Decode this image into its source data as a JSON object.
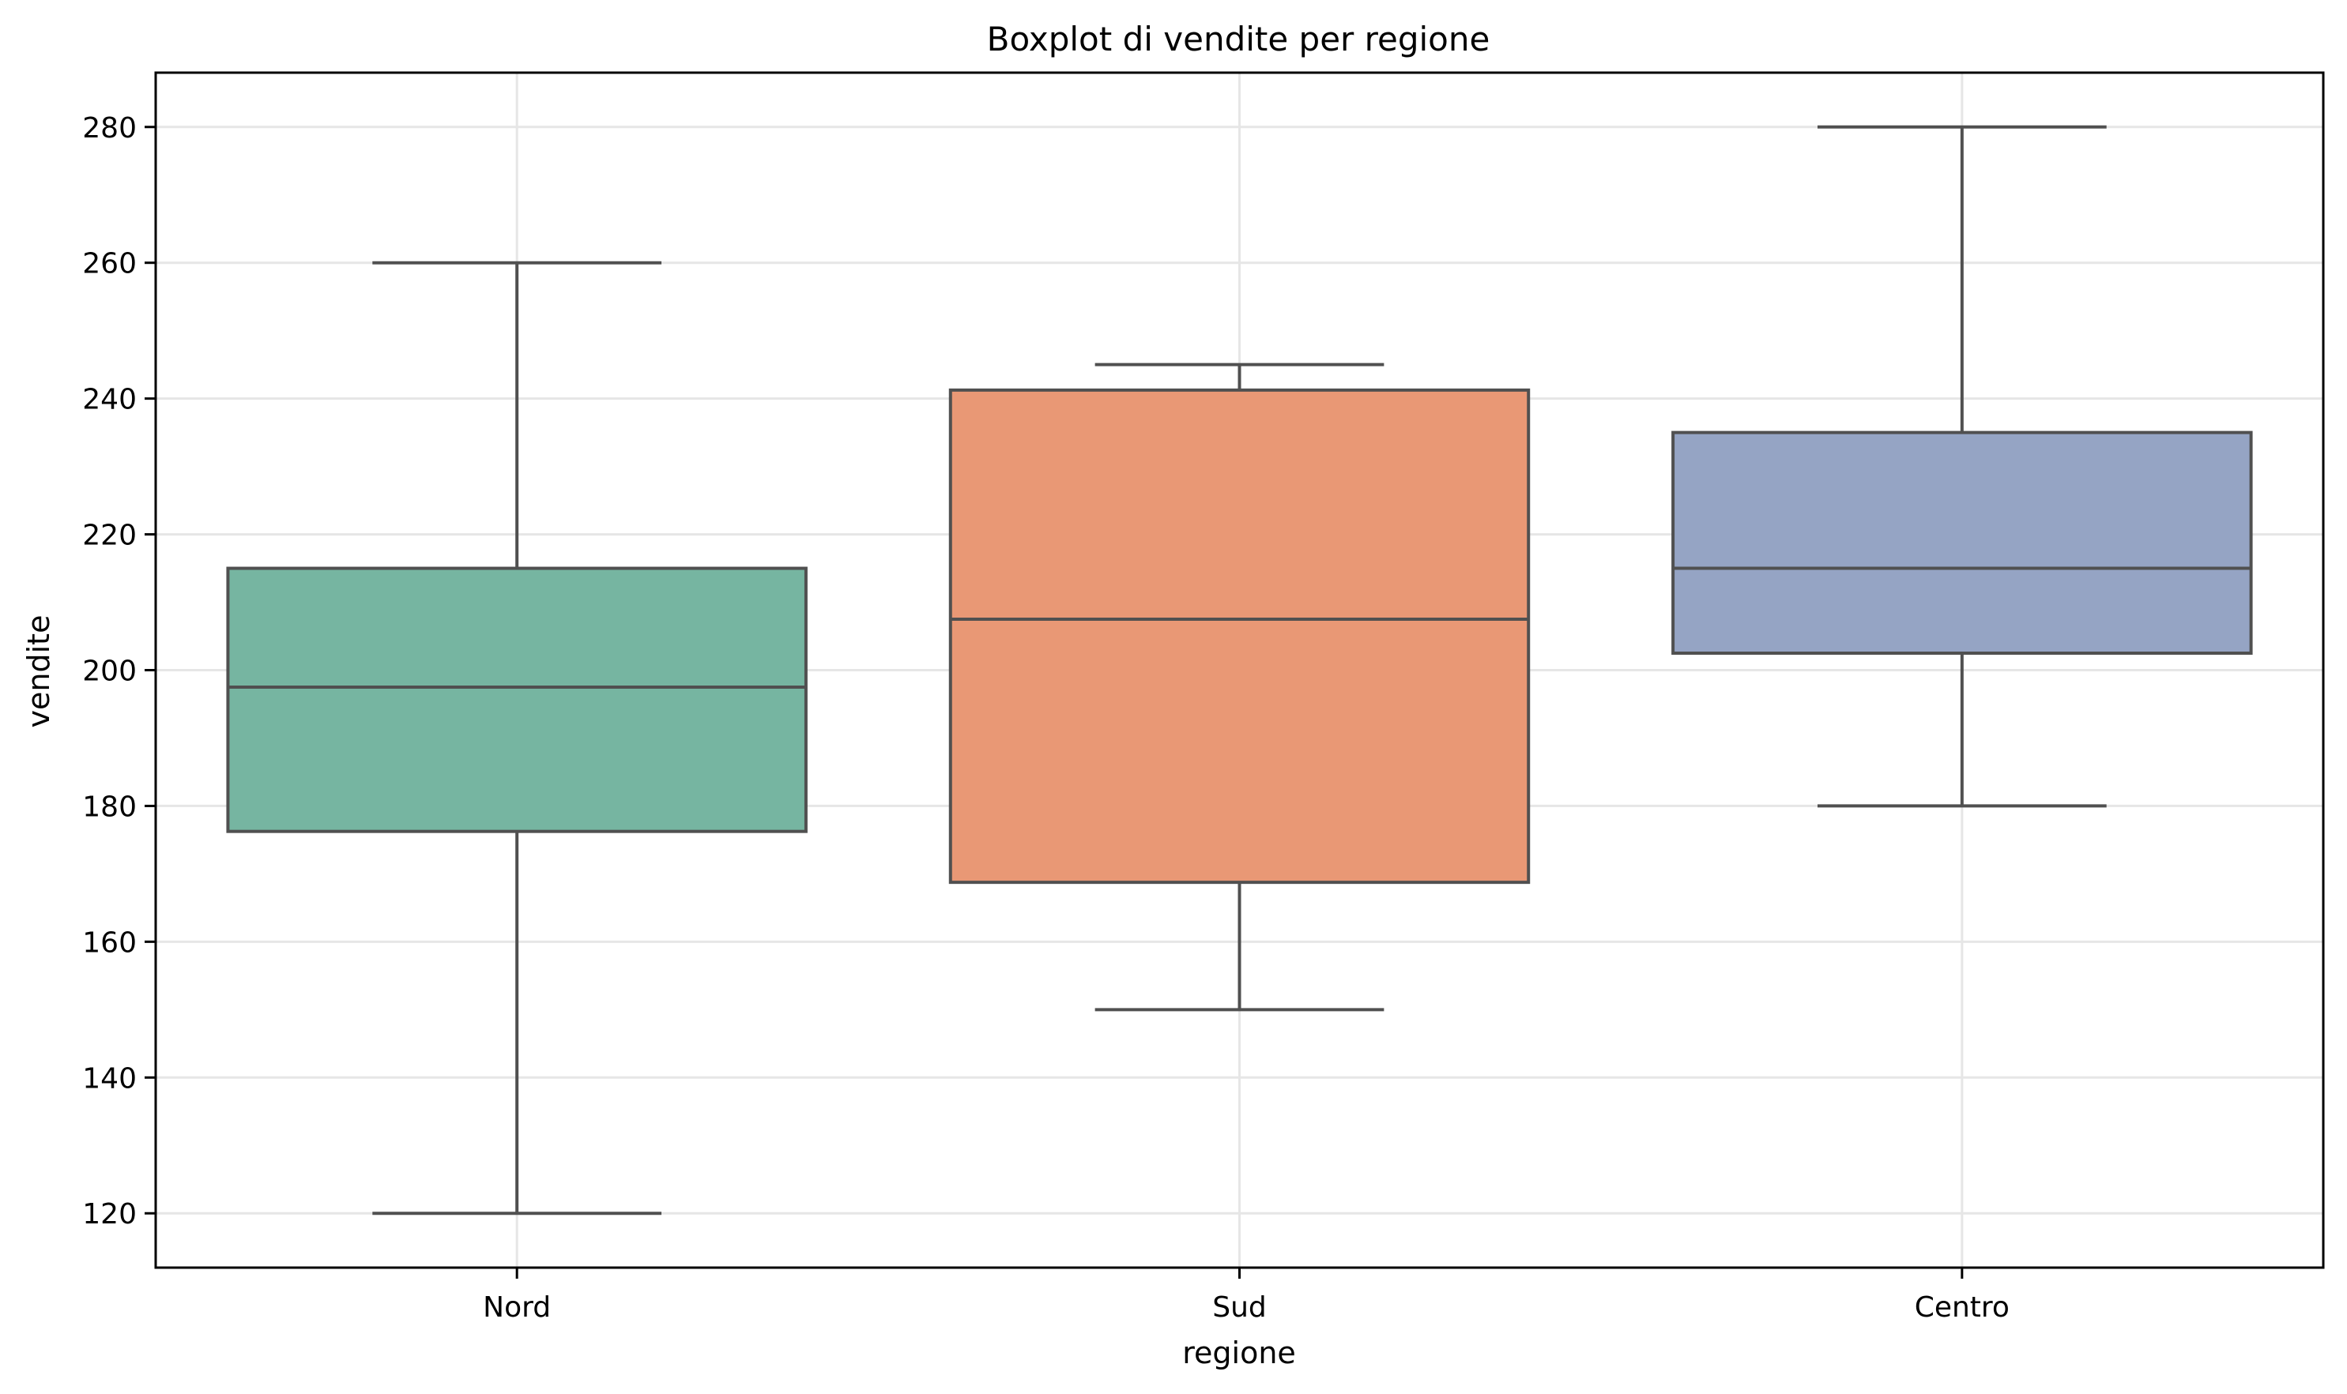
{
  "chart_data": {
    "type": "boxplot",
    "title": "Boxplot di vendite per regione",
    "xlabel": "regione",
    "ylabel": "vendite",
    "ylim": [
      112,
      288
    ],
    "yticks": [
      120,
      140,
      160,
      180,
      200,
      220,
      240,
      260,
      280
    ],
    "grid": true,
    "categories": [
      "Nord",
      "Sud",
      "Centro"
    ],
    "boxes": [
      {
        "category": "Nord",
        "min": 120,
        "q1": 176.25,
        "median": 197.5,
        "q3": 215,
        "max": 260,
        "color": "#76b5a1"
      },
      {
        "category": "Sud",
        "min": 150,
        "q1": 168.75,
        "median": 207.5,
        "q3": 241.25,
        "max": 245,
        "color": "#e99875"
      },
      {
        "category": "Centro",
        "min": 180,
        "q1": 202.5,
        "median": 215,
        "q3": 235,
        "max": 280,
        "color": "#95a4c4"
      }
    ]
  }
}
